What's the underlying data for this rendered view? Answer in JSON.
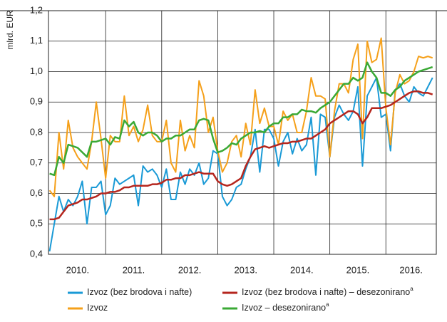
{
  "chart_data": {
    "type": "line",
    "y_label": "mlrd. EUR",
    "xlim": [
      2009.98,
      2016.9
    ],
    "ylim": [
      0.4,
      1.2
    ],
    "yticks": [
      {
        "value": 0.4,
        "label": "0,4"
      },
      {
        "value": 0.5,
        "label": "0,5"
      },
      {
        "value": 0.6,
        "label": "0,6"
      },
      {
        "value": 0.7,
        "label": "0,7"
      },
      {
        "value": 0.8,
        "label": "0,8"
      },
      {
        "value": 0.9,
        "label": "0,9"
      },
      {
        "value": 1.0,
        "label": "1,0"
      },
      {
        "value": 1.1,
        "label": "1,1"
      },
      {
        "value": 1.2,
        "label": "1,2"
      }
    ],
    "xticks": [
      {
        "value": 2010.5,
        "label": "2010."
      },
      {
        "value": 2011.5,
        "label": "2011."
      },
      {
        "value": 2012.5,
        "label": "2012."
      },
      {
        "value": 2013.5,
        "label": "2013."
      },
      {
        "value": 2014.5,
        "label": "2014."
      },
      {
        "value": 2015.5,
        "label": "2015."
      },
      {
        "value": 2016.45,
        "label": "2016."
      }
    ],
    "xgrid": [
      2011,
      2012,
      2013,
      2014,
      2015,
      2016
    ],
    "grid": true,
    "legend": "bottom",
    "x": [
      2010,
      2010.083,
      2010.167,
      2010.25,
      2010.333,
      2010.417,
      2010.5,
      2010.583,
      2010.667,
      2010.75,
      2010.833,
      2010.917,
      2011,
      2011.083,
      2011.167,
      2011.25,
      2011.333,
      2011.417,
      2011.5,
      2011.583,
      2011.667,
      2011.75,
      2011.833,
      2011.917,
      2012,
      2012.083,
      2012.167,
      2012.25,
      2012.333,
      2012.417,
      2012.5,
      2012.583,
      2012.667,
      2012.75,
      2012.833,
      2012.917,
      2013,
      2013.083,
      2013.167,
      2013.25,
      2013.333,
      2013.417,
      2013.5,
      2013.583,
      2013.667,
      2013.75,
      2013.833,
      2013.917,
      2014,
      2014.083,
      2014.167,
      2014.25,
      2014.333,
      2014.417,
      2014.5,
      2014.583,
      2014.667,
      2014.75,
      2014.833,
      2014.917,
      2015,
      2015.083,
      2015.167,
      2015.25,
      2015.333,
      2015.417,
      2015.5,
      2015.583,
      2015.667,
      2015.75,
      2015.833,
      2015.917,
      2016,
      2016.083,
      2016.167,
      2016.25,
      2016.333,
      2016.417,
      2016.5,
      2016.583,
      2016.667,
      2016.75,
      2016.833
    ],
    "series": [
      {
        "name": "Izvoz (bez brodova i nafte)",
        "color": "#1a9ad6",
        "width": 2,
        "values": [
          0.41,
          0.5,
          0.59,
          0.54,
          0.58,
          0.56,
          0.59,
          0.64,
          0.5,
          0.62,
          0.62,
          0.64,
          0.53,
          0.56,
          0.65,
          0.63,
          0.64,
          0.65,
          0.66,
          0.56,
          0.69,
          0.67,
          0.68,
          0.66,
          0.62,
          0.68,
          0.58,
          0.58,
          0.67,
          0.63,
          0.68,
          0.66,
          0.7,
          0.63,
          0.65,
          0.74,
          0.73,
          0.59,
          0.56,
          0.58,
          0.62,
          0.63,
          0.68,
          0.72,
          0.81,
          0.67,
          0.81,
          0.81,
          0.78,
          0.69,
          0.77,
          0.8,
          0.73,
          0.78,
          0.74,
          0.76,
          0.85,
          0.66,
          0.86,
          0.85,
          0.72,
          0.85,
          0.89,
          0.86,
          0.84,
          0.87,
          0.95,
          0.69,
          0.92,
          0.95,
          0.98,
          0.85,
          0.86,
          0.74,
          0.94,
          0.96,
          0.92,
          0.9,
          0.95,
          0.93,
          0.92,
          0.95,
          0.98
        ]
      },
      {
        "name": "Izvoz",
        "color": "#f5a01a",
        "width": 2,
        "values": [
          0.61,
          0.59,
          0.8,
          0.68,
          0.84,
          0.75,
          0.72,
          0.7,
          0.68,
          0.77,
          0.9,
          0.78,
          0.65,
          0.79,
          0.77,
          0.77,
          0.92,
          0.79,
          0.82,
          0.77,
          0.81,
          0.89,
          0.79,
          0.77,
          0.77,
          0.84,
          0.7,
          0.67,
          0.84,
          0.74,
          0.79,
          0.75,
          0.97,
          0.92,
          0.8,
          0.85,
          0.74,
          0.67,
          0.7,
          0.77,
          0.79,
          0.72,
          0.83,
          0.76,
          0.94,
          0.83,
          0.88,
          0.82,
          0.82,
          0.76,
          0.87,
          0.84,
          0.86,
          0.8,
          0.8,
          0.87,
          0.98,
          0.92,
          0.92,
          0.91,
          0.72,
          0.87,
          0.96,
          0.96,
          0.93,
          1.04,
          1.09,
          0.78,
          1.1,
          1.03,
          1.04,
          1.11,
          0.88,
          0.76,
          0.93,
          0.99,
          0.96,
          0.97,
          1.0,
          1.05,
          1.045,
          1.05,
          1.045
        ]
      },
      {
        "name": "Izvoz (bez brodova i nafte) – desezonirano",
        "note": "a",
        "color": "#b5261e",
        "width": 2.5,
        "values": [
          0.515,
          0.515,
          0.52,
          0.54,
          0.56,
          0.565,
          0.57,
          0.58,
          0.58,
          0.585,
          0.59,
          0.6,
          0.6,
          0.605,
          0.605,
          0.61,
          0.62,
          0.62,
          0.625,
          0.625,
          0.625,
          0.625,
          0.63,
          0.63,
          0.635,
          0.645,
          0.645,
          0.65,
          0.65,
          0.66,
          0.66,
          0.665,
          0.67,
          0.665,
          0.665,
          0.665,
          0.64,
          0.63,
          0.625,
          0.63,
          0.64,
          0.65,
          0.69,
          0.72,
          0.745,
          0.75,
          0.755,
          0.75,
          0.755,
          0.76,
          0.765,
          0.765,
          0.77,
          0.77,
          0.775,
          0.78,
          0.78,
          0.79,
          0.8,
          0.81,
          0.83,
          0.84,
          0.85,
          0.86,
          0.87,
          0.87,
          0.86,
          0.83,
          0.85,
          0.88,
          0.88,
          0.88,
          0.885,
          0.89,
          0.9,
          0.91,
          0.92,
          0.93,
          0.935,
          0.935,
          0.93,
          0.93,
          0.925
        ]
      },
      {
        "name": "Izvoz – desezonirano",
        "note": "a",
        "color": "#3aa935",
        "width": 2.5,
        "values": [
          0.665,
          0.66,
          0.72,
          0.7,
          0.76,
          0.755,
          0.75,
          0.735,
          0.72,
          0.77,
          0.77,
          0.775,
          0.78,
          0.76,
          0.785,
          0.78,
          0.84,
          0.82,
          0.835,
          0.8,
          0.79,
          0.8,
          0.8,
          0.79,
          0.77,
          0.78,
          0.78,
          0.79,
          0.79,
          0.8,
          0.81,
          0.81,
          0.84,
          0.845,
          0.84,
          0.78,
          0.735,
          0.74,
          0.75,
          0.765,
          0.76,
          0.78,
          0.79,
          0.8,
          0.8,
          0.805,
          0.8,
          0.82,
          0.83,
          0.83,
          0.85,
          0.85,
          0.86,
          0.86,
          0.875,
          0.87,
          0.87,
          0.865,
          0.88,
          0.89,
          0.9,
          0.92,
          0.94,
          0.96,
          0.96,
          0.98,
          0.97,
          0.98,
          1.03,
          1.0,
          0.98,
          0.93,
          0.93,
          0.92,
          0.94,
          0.95,
          0.97,
          0.98,
          0.99,
          1.0,
          1.005,
          1.01,
          1.015
        ]
      }
    ]
  }
}
